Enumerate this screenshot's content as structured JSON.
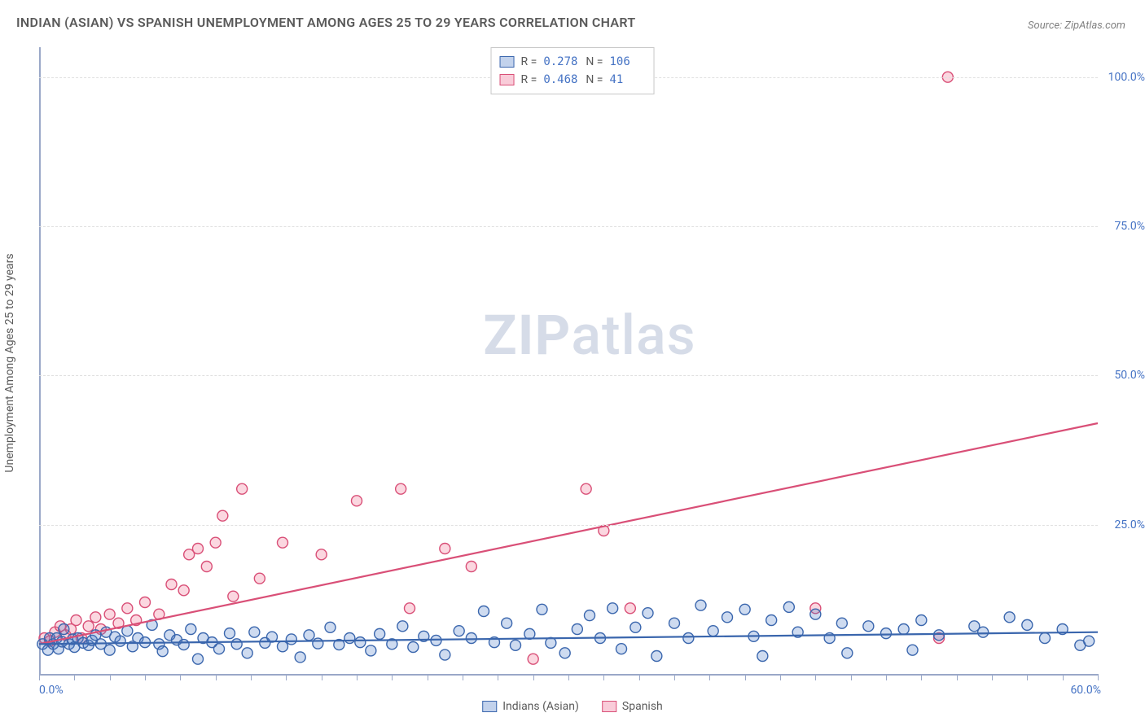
{
  "title": "INDIAN (ASIAN) VS SPANISH UNEMPLOYMENT AMONG AGES 25 TO 29 YEARS CORRELATION CHART",
  "source_label": "Source: ZipAtlas.com",
  "y_axis_title": "Unemployment Among Ages 25 to 29 years",
  "watermark_bold": "ZIP",
  "watermark_light": "atlas",
  "chart": {
    "type": "scatter",
    "background_color": "#ffffff",
    "grid_color": "#e0e0e0",
    "axis_color": "#9aa8c8",
    "tick_label_color": "#4472c4",
    "tick_fontsize": 14,
    "title_fontsize": 16,
    "title_color": "#5a5a5a",
    "xlim": [
      0,
      60
    ],
    "ylim": [
      0,
      105
    ],
    "x_ticks": [
      0,
      60
    ],
    "x_tick_labels": [
      "0.0%",
      "60.0%"
    ],
    "x_minor_step": 2,
    "y_ticks": [
      25,
      50,
      75,
      100
    ],
    "y_tick_labels": [
      "25.0%",
      "50.0%",
      "75.0%",
      "100.0%"
    ],
    "marker_radius": 6.5,
    "marker_stroke_width": 1.4,
    "marker_fill_opacity": 0.28,
    "trendline_width": 2.2
  },
  "series": {
    "blue": {
      "label": "Indians (Asian)",
      "color": "#4f7fc9",
      "stroke": "#3a66ad",
      "r_value": "0.278",
      "n_value": "106",
      "trendline": {
        "x1": 0,
        "y1": 5.0,
        "x2": 60,
        "y2": 7.0
      },
      "points": [
        [
          0.2,
          5
        ],
        [
          0.5,
          4
        ],
        [
          0.6,
          6
        ],
        [
          0.8,
          5
        ],
        [
          1.0,
          6
        ],
        [
          1.1,
          4.2
        ],
        [
          1.3,
          5.4
        ],
        [
          1.4,
          7.5
        ],
        [
          1.7,
          5.0
        ],
        [
          1.9,
          5.8
        ],
        [
          2.0,
          4.5
        ],
        [
          2.2,
          6.0
        ],
        [
          2.5,
          5.2
        ],
        [
          2.8,
          4.8
        ],
        [
          3.0,
          5.6
        ],
        [
          3.2,
          6.5
        ],
        [
          3.5,
          5.0
        ],
        [
          3.8,
          7.0
        ],
        [
          4.0,
          4.0
        ],
        [
          4.3,
          6.2
        ],
        [
          4.6,
          5.5
        ],
        [
          5.0,
          7.2
        ],
        [
          5.3,
          4.6
        ],
        [
          5.6,
          6.0
        ],
        [
          6.0,
          5.3
        ],
        [
          6.4,
          8.2
        ],
        [
          6.8,
          5.0
        ],
        [
          7.0,
          3.8
        ],
        [
          7.4,
          6.5
        ],
        [
          7.8,
          5.7
        ],
        [
          8.2,
          4.9
        ],
        [
          8.6,
          7.5
        ],
        [
          9.0,
          2.5
        ],
        [
          9.3,
          6.0
        ],
        [
          9.8,
          5.3
        ],
        [
          10.2,
          4.2
        ],
        [
          10.8,
          6.8
        ],
        [
          11.2,
          5.0
        ],
        [
          11.8,
          3.5
        ],
        [
          12.2,
          7.0
        ],
        [
          12.8,
          5.2
        ],
        [
          13.2,
          6.2
        ],
        [
          13.8,
          4.6
        ],
        [
          14.3,
          5.8
        ],
        [
          14.8,
          2.8
        ],
        [
          15.3,
          6.5
        ],
        [
          15.8,
          5.1
        ],
        [
          16.5,
          7.8
        ],
        [
          17.0,
          4.9
        ],
        [
          17.6,
          6.0
        ],
        [
          18.2,
          5.3
        ],
        [
          18.8,
          3.9
        ],
        [
          19.3,
          6.7
        ],
        [
          20.0,
          5.0
        ],
        [
          20.6,
          8.0
        ],
        [
          21.2,
          4.5
        ],
        [
          21.8,
          6.3
        ],
        [
          22.5,
          5.6
        ],
        [
          23.0,
          3.2
        ],
        [
          23.8,
          7.2
        ],
        [
          24.5,
          6.0
        ],
        [
          25.2,
          10.5
        ],
        [
          25.8,
          5.3
        ],
        [
          26.5,
          8.5
        ],
        [
          27.0,
          4.8
        ],
        [
          27.8,
          6.7
        ],
        [
          28.5,
          10.8
        ],
        [
          29.0,
          5.2
        ],
        [
          29.8,
          3.5
        ],
        [
          30.5,
          7.5
        ],
        [
          31.2,
          9.8
        ],
        [
          31.8,
          6.0
        ],
        [
          32.5,
          11.0
        ],
        [
          33.0,
          4.2
        ],
        [
          33.8,
          7.8
        ],
        [
          34.5,
          10.2
        ],
        [
          35.0,
          3.0
        ],
        [
          36.0,
          8.5
        ],
        [
          36.8,
          6.0
        ],
        [
          37.5,
          11.5
        ],
        [
          38.2,
          7.2
        ],
        [
          39.0,
          9.5
        ],
        [
          40.0,
          10.8
        ],
        [
          40.5,
          6.3
        ],
        [
          41.0,
          3.0
        ],
        [
          41.5,
          9.0
        ],
        [
          42.5,
          11.2
        ],
        [
          43.0,
          7.0
        ],
        [
          44.0,
          10.0
        ],
        [
          44.8,
          6.0
        ],
        [
          45.5,
          8.5
        ],
        [
          45.8,
          3.5
        ],
        [
          47.0,
          8.0
        ],
        [
          48.0,
          6.8
        ],
        [
          49.0,
          7.5
        ],
        [
          49.5,
          4.0
        ],
        [
          50.0,
          9.0
        ],
        [
          51.0,
          6.5
        ],
        [
          53.0,
          8.0
        ],
        [
          53.5,
          7.0
        ],
        [
          55.0,
          9.5
        ],
        [
          56.0,
          8.2
        ],
        [
          57.0,
          6.0
        ],
        [
          58.0,
          7.5
        ],
        [
          59.0,
          4.8
        ],
        [
          59.5,
          5.5
        ]
      ]
    },
    "pink": {
      "label": "Spanish",
      "color": "#ef6e91",
      "stroke": "#d94f77",
      "r_value": "0.468",
      "n_value": "41",
      "trendline": {
        "x1": 0,
        "y1": 5.0,
        "x2": 60,
        "y2": 42.0
      },
      "points": [
        [
          0.3,
          6
        ],
        [
          0.6,
          5.5
        ],
        [
          0.9,
          7
        ],
        [
          1.2,
          8
        ],
        [
          1.5,
          6.5
        ],
        [
          1.8,
          7.5
        ],
        [
          2.1,
          9
        ],
        [
          2.4,
          6
        ],
        [
          2.8,
          8
        ],
        [
          3.2,
          9.5
        ],
        [
          3.5,
          7.5
        ],
        [
          4.0,
          10
        ],
        [
          4.5,
          8.5
        ],
        [
          5.0,
          11
        ],
        [
          5.5,
          9
        ],
        [
          6.0,
          12
        ],
        [
          6.8,
          10
        ],
        [
          7.5,
          15
        ],
        [
          8.2,
          14
        ],
        [
          8.5,
          20
        ],
        [
          9.0,
          21
        ],
        [
          9.5,
          18
        ],
        [
          10.0,
          22
        ],
        [
          10.4,
          26.5
        ],
        [
          11.0,
          13
        ],
        [
          11.5,
          31
        ],
        [
          12.5,
          16
        ],
        [
          13.8,
          22
        ],
        [
          16.0,
          20
        ],
        [
          18.0,
          29
        ],
        [
          20.5,
          31
        ],
        [
          21.0,
          11
        ],
        [
          23.0,
          21
        ],
        [
          24.5,
          18
        ],
        [
          28.0,
          2.5
        ],
        [
          31.0,
          31
        ],
        [
          32.0,
          24
        ],
        [
          33.5,
          11
        ],
        [
          44.0,
          11
        ],
        [
          51.0,
          6
        ],
        [
          51.5,
          100
        ]
      ]
    }
  }
}
